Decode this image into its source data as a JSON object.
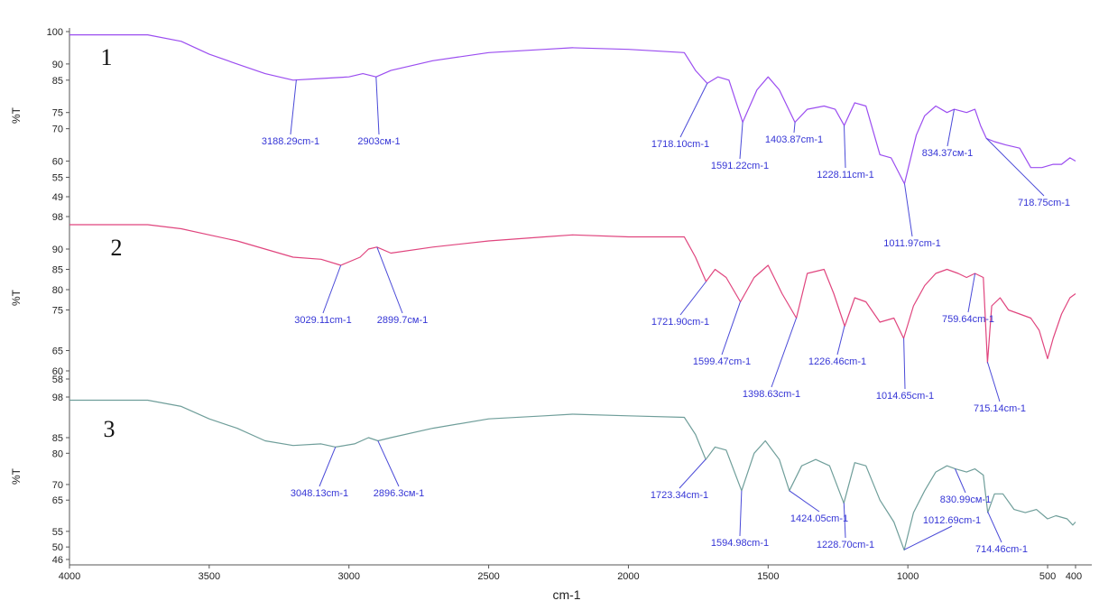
{
  "chart_data": {
    "type": "line",
    "xlabel": "cm-1",
    "xlim": [
      4000,
      400
    ],
    "x_ticks": [
      "4000",
      "3500",
      "3000",
      "2500",
      "2000",
      "1500",
      "1000",
      "500",
      "400"
    ],
    "grid": false,
    "legend": "none",
    "panels": [
      {
        "label": "1",
        "ylabel": "%T",
        "ylim": [
          49,
          100
        ],
        "y_ticks": [
          "100",
          "90",
          "85",
          "75",
          "70",
          "60",
          "55",
          "49"
        ],
        "color": "#9b4df0",
        "points": [
          [
            4000,
            99
          ],
          [
            3720,
            99
          ],
          [
            3600,
            97
          ],
          [
            3500,
            93
          ],
          [
            3400,
            90
          ],
          [
            3300,
            87
          ],
          [
            3200,
            85
          ],
          [
            3100,
            85.5
          ],
          [
            3000,
            86
          ],
          [
            2950,
            87
          ],
          [
            2903,
            86
          ],
          [
            2850,
            88
          ],
          [
            2700,
            91
          ],
          [
            2500,
            93.5
          ],
          [
            2300,
            94.5
          ],
          [
            2200,
            95
          ],
          [
            2000,
            94.5
          ],
          [
            1800,
            93.5
          ],
          [
            1760,
            88
          ],
          [
            1718,
            84
          ],
          [
            1680,
            86
          ],
          [
            1640,
            85
          ],
          [
            1591,
            72
          ],
          [
            1540,
            82
          ],
          [
            1500,
            86
          ],
          [
            1460,
            82
          ],
          [
            1404,
            72
          ],
          [
            1360,
            76
          ],
          [
            1300,
            77
          ],
          [
            1260,
            76
          ],
          [
            1228,
            71
          ],
          [
            1190,
            78
          ],
          [
            1150,
            77
          ],
          [
            1100,
            62
          ],
          [
            1060,
            61
          ],
          [
            1012,
            53
          ],
          [
            970,
            68
          ],
          [
            940,
            74
          ],
          [
            900,
            77
          ],
          [
            860,
            75
          ],
          [
            834,
            76
          ],
          [
            790,
            75
          ],
          [
            760,
            76
          ],
          [
            740,
            71
          ],
          [
            719,
            67
          ],
          [
            690,
            66
          ],
          [
            650,
            65
          ],
          [
            600,
            64
          ],
          [
            560,
            58
          ],
          [
            520,
            58
          ],
          [
            480,
            59
          ],
          [
            450,
            59
          ],
          [
            420,
            61
          ],
          [
            400,
            60
          ]
        ],
        "annotations": [
          {
            "label": "3188.29cm-1",
            "x": 3188.29
          },
          {
            "label": "2903cм-1",
            "x": 2903
          },
          {
            "label": "1718.10cm-1",
            "x": 1718.1
          },
          {
            "label": "1591.22cm-1",
            "x": 1591.22
          },
          {
            "label": "1403.87cm-1",
            "x": 1403.87
          },
          {
            "label": "1228.11cm-1",
            "x": 1228.11
          },
          {
            "label": "1011.97cm-1",
            "x": 1011.97
          },
          {
            "label": "834.37cм-1",
            "x": 834.37
          },
          {
            "label": "718.75cm-1",
            "x": 718.75
          }
        ]
      },
      {
        "label": "2",
        "ylabel": "%T",
        "ylim": [
          58,
          98
        ],
        "y_ticks": [
          "98",
          "90",
          "85",
          "80",
          "75",
          "65",
          "60",
          "58"
        ],
        "color": "#e0457e",
        "points": [
          [
            4000,
            96
          ],
          [
            3720,
            96
          ],
          [
            3600,
            95
          ],
          [
            3500,
            93.5
          ],
          [
            3400,
            92
          ],
          [
            3300,
            90
          ],
          [
            3200,
            88
          ],
          [
            3100,
            87.5
          ],
          [
            3029,
            86
          ],
          [
            2960,
            88
          ],
          [
            2930,
            90
          ],
          [
            2900,
            90.5
          ],
          [
            2850,
            89
          ],
          [
            2700,
            90.5
          ],
          [
            2500,
            92
          ],
          [
            2300,
            93
          ],
          [
            2200,
            93.5
          ],
          [
            2000,
            93
          ],
          [
            1800,
            93
          ],
          [
            1760,
            88
          ],
          [
            1722,
            82
          ],
          [
            1690,
            85
          ],
          [
            1650,
            83
          ],
          [
            1599,
            77
          ],
          [
            1550,
            83
          ],
          [
            1500,
            86
          ],
          [
            1450,
            79
          ],
          [
            1399,
            73
          ],
          [
            1360,
            84
          ],
          [
            1300,
            85
          ],
          [
            1265,
            79
          ],
          [
            1226,
            71
          ],
          [
            1190,
            78
          ],
          [
            1150,
            77
          ],
          [
            1100,
            72
          ],
          [
            1050,
            73
          ],
          [
            1015,
            68
          ],
          [
            980,
            76
          ],
          [
            940,
            81
          ],
          [
            900,
            84
          ],
          [
            860,
            85
          ],
          [
            820,
            84
          ],
          [
            790,
            83
          ],
          [
            760,
            84
          ],
          [
            730,
            83
          ],
          [
            715,
            62
          ],
          [
            700,
            76
          ],
          [
            670,
            78
          ],
          [
            640,
            75
          ],
          [
            600,
            74
          ],
          [
            560,
            73
          ],
          [
            530,
            70
          ],
          [
            500,
            63
          ],
          [
            480,
            68
          ],
          [
            450,
            74
          ],
          [
            420,
            78
          ],
          [
            400,
            79
          ]
        ],
        "annotations": [
          {
            "label": "3029.11cm-1",
            "x": 3029.11
          },
          {
            "label": "2899.7cм-1",
            "x": 2899.7
          },
          {
            "label": "1721.90cm-1",
            "x": 1721.9
          },
          {
            "label": "1599.47cm-1",
            "x": 1599.47
          },
          {
            "label": "1398.63cm-1",
            "x": 1398.63
          },
          {
            "label": "1226.46cm-1",
            "x": 1226.46
          },
          {
            "label": "1014.65cm-1",
            "x": 1014.65
          },
          {
            "label": "759.64cm-1",
            "x": 759.64
          },
          {
            "label": "715.14cm-1",
            "x": 715.14
          }
        ]
      },
      {
        "label": "3",
        "ylabel": "%T",
        "ylim": [
          46,
          98
        ],
        "y_ticks": [
          "98",
          "85",
          "80",
          "70",
          "65",
          "55",
          "50",
          "46"
        ],
        "color": "#6f9e9a",
        "points": [
          [
            4000,
            97
          ],
          [
            3720,
            97
          ],
          [
            3600,
            95
          ],
          [
            3500,
            91
          ],
          [
            3400,
            88
          ],
          [
            3300,
            84
          ],
          [
            3200,
            82.5
          ],
          [
            3100,
            83
          ],
          [
            3048,
            82
          ],
          [
            2980,
            83
          ],
          [
            2930,
            85
          ],
          [
            2896,
            84
          ],
          [
            2850,
            85
          ],
          [
            2700,
            88
          ],
          [
            2500,
            91
          ],
          [
            2300,
            92
          ],
          [
            2200,
            92.5
          ],
          [
            2000,
            92
          ],
          [
            1800,
            91.5
          ],
          [
            1760,
            86
          ],
          [
            1723,
            78
          ],
          [
            1690,
            82
          ],
          [
            1650,
            81
          ],
          [
            1595,
            68
          ],
          [
            1550,
            80
          ],
          [
            1510,
            84
          ],
          [
            1460,
            78
          ],
          [
            1424,
            68
          ],
          [
            1380,
            76
          ],
          [
            1330,
            78
          ],
          [
            1280,
            76
          ],
          [
            1229,
            64
          ],
          [
            1190,
            77
          ],
          [
            1150,
            76
          ],
          [
            1100,
            65
          ],
          [
            1050,
            58
          ],
          [
            1013,
            49
          ],
          [
            980,
            61
          ],
          [
            940,
            68
          ],
          [
            900,
            74
          ],
          [
            860,
            76
          ],
          [
            830,
            75
          ],
          [
            790,
            74
          ],
          [
            760,
            75
          ],
          [
            730,
            73
          ],
          [
            714,
            61
          ],
          [
            690,
            67
          ],
          [
            660,
            67
          ],
          [
            620,
            62
          ],
          [
            580,
            61
          ],
          [
            540,
            62
          ],
          [
            500,
            59
          ],
          [
            470,
            60
          ],
          [
            430,
            59
          ],
          [
            410,
            57
          ],
          [
            400,
            58
          ]
        ],
        "annotations": [
          {
            "label": "3048.13cm-1",
            "x": 3048.13
          },
          {
            "label": "2896.3cм-1",
            "x": 2896.3
          },
          {
            "label": "1723.34cm-1",
            "x": 1723.34
          },
          {
            "label": "1594.98cm-1",
            "x": 1594.98
          },
          {
            "label": "1424.05cm-1",
            "x": 1424.05
          },
          {
            "label": "1228.70cm-1",
            "x": 1228.7
          },
          {
            "label": "1012.69cm-1",
            "x": 1012.69
          },
          {
            "label": "830.99cм-1",
            "x": 830.99
          },
          {
            "label": "714.46cm-1",
            "x": 714.46
          }
        ]
      }
    ]
  }
}
